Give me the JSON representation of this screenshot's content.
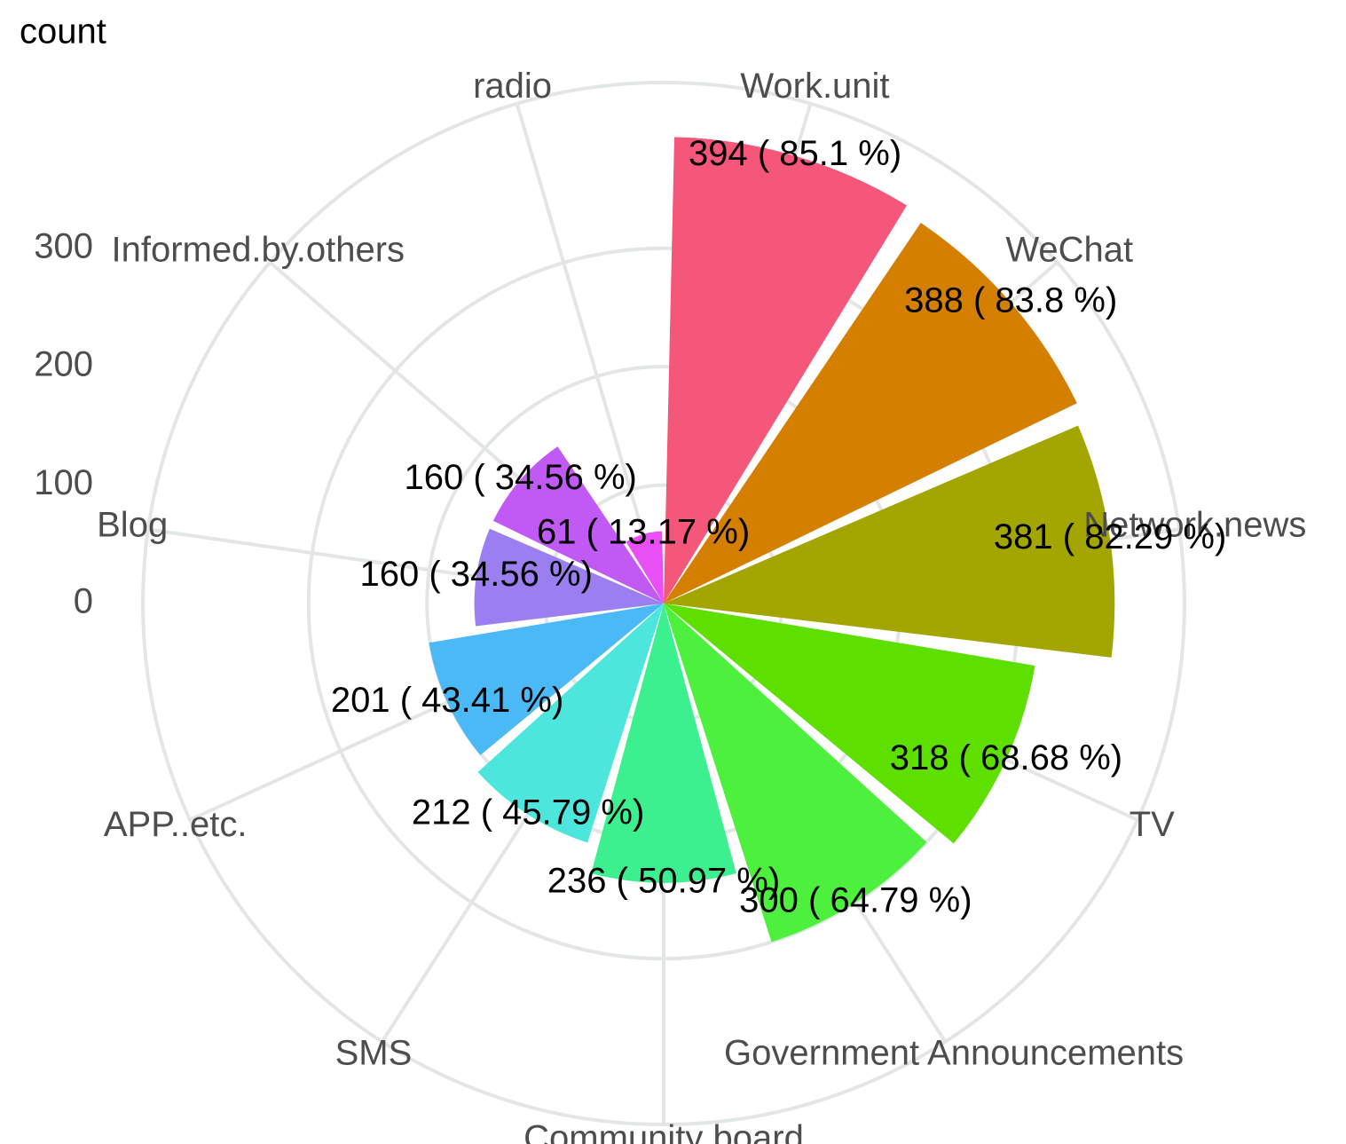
{
  "chart_data": {
    "type": "polar_bar",
    "y_label": "count",
    "categories": [
      "Work.unit",
      "WeChat",
      "Network.news",
      "TV",
      "Government Announcements",
      "Community board",
      "SMS",
      "APP..etc.",
      "Blog",
      "Informed.by.others",
      "radio"
    ],
    "values": [
      394,
      388,
      381,
      318,
      300,
      236,
      212,
      201,
      160,
      160,
      61
    ],
    "value_labels": [
      "394 ( 85.1 %)",
      "388 ( 83.8 %)",
      "381 ( 82.29 %)",
      "318 ( 68.68 %)",
      "300 ( 64.79 %)",
      "236 ( 50.97 %)",
      "212 ( 45.79 %)",
      "201 ( 43.41 %)",
      "160 ( 34.56 %)",
      "160 ( 34.56 %)",
      "61 ( 13.17 %)"
    ],
    "colors": [
      "#f5577a",
      "#d47f00",
      "#a3a500",
      "#5de000",
      "#4ef03e",
      "#3df08f",
      "#4de6dd",
      "#4bb9f5",
      "#9b7ff0",
      "#c15af5",
      "#e84ff5"
    ],
    "ylim": [
      0,
      440
    ],
    "yticks": [
      0,
      100,
      200,
      300
    ],
    "grid": true
  }
}
